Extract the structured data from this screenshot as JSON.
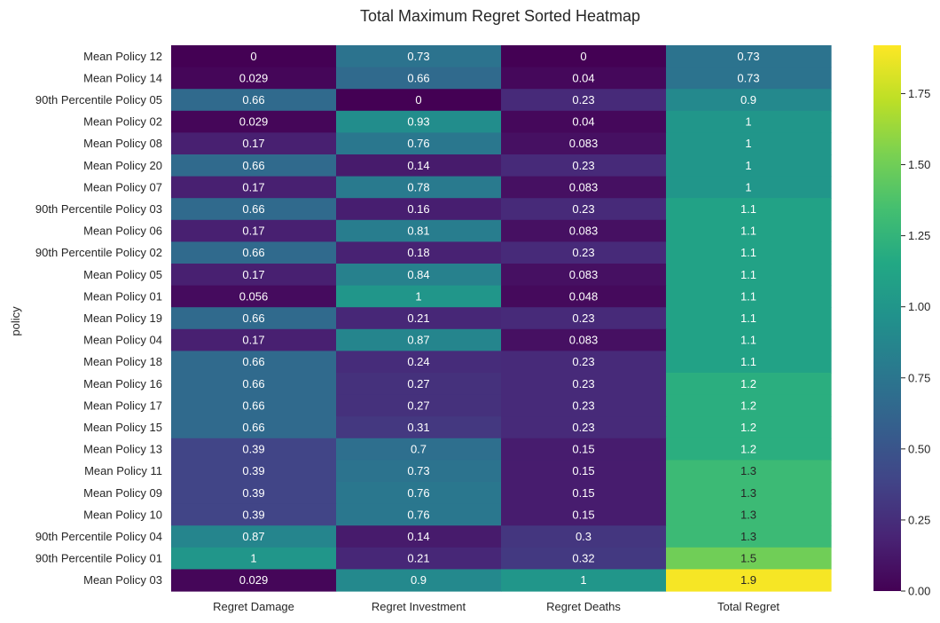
{
  "chart_data": {
    "type": "heatmap",
    "title": "Total Maximum Regret Sorted Heatmap",
    "ylabel": "policy",
    "xlabel": "",
    "colormap": "viridis",
    "columns": [
      "Regret Damage",
      "Regret Investment",
      "Regret Deaths",
      "Total Regret"
    ],
    "rows": [
      "Mean Policy 12",
      "Mean Policy 14",
      "90th Percentile Policy 05",
      "Mean Policy 02",
      "Mean Policy 08",
      "Mean Policy 20",
      "Mean Policy 07",
      "90th Percentile Policy 03",
      "Mean Policy 06",
      "90th Percentile Policy 02",
      "Mean Policy 05",
      "Mean Policy 01",
      "Mean Policy 19",
      "Mean Policy 04",
      "Mean Policy 18",
      "Mean Policy 16",
      "Mean Policy 17",
      "Mean Policy 15",
      "Mean Policy 13",
      "Mean Policy 11",
      "Mean Policy 09",
      "Mean Policy 10",
      "90th Percentile Policy 04",
      "90th Percentile Policy 01",
      "Mean Policy 03"
    ],
    "values": [
      [
        0,
        0.73,
        0,
        0.73
      ],
      [
        0.029,
        0.66,
        0.04,
        0.73
      ],
      [
        0.66,
        0,
        0.23,
        0.9
      ],
      [
        0.029,
        0.93,
        0.04,
        1
      ],
      [
        0.17,
        0.76,
        0.083,
        1
      ],
      [
        0.66,
        0.14,
        0.23,
        1
      ],
      [
        0.17,
        0.78,
        0.083,
        1
      ],
      [
        0.66,
        0.16,
        0.23,
        1.1
      ],
      [
        0.17,
        0.81,
        0.083,
        1.1
      ],
      [
        0.66,
        0.18,
        0.23,
        1.1
      ],
      [
        0.17,
        0.84,
        0.083,
        1.1
      ],
      [
        0.056,
        1,
        0.048,
        1.1
      ],
      [
        0.66,
        0.21,
        0.23,
        1.1
      ],
      [
        0.17,
        0.87,
        0.083,
        1.1
      ],
      [
        0.66,
        0.24,
        0.23,
        1.1
      ],
      [
        0.66,
        0.27,
        0.23,
        1.2
      ],
      [
        0.66,
        0.27,
        0.23,
        1.2
      ],
      [
        0.66,
        0.31,
        0.23,
        1.2
      ],
      [
        0.39,
        0.7,
        0.15,
        1.2
      ],
      [
        0.39,
        0.73,
        0.15,
        1.3
      ],
      [
        0.39,
        0.76,
        0.15,
        1.3
      ],
      [
        0.39,
        0.76,
        0.15,
        1.3
      ],
      [
        0.87,
        0.14,
        0.3,
        1.3
      ],
      [
        1,
        0.21,
        0.32,
        1.5
      ],
      [
        0.029,
        0.9,
        1,
        1.9
      ]
    ],
    "labels": [
      [
        "0",
        "0.73",
        "0",
        "0.73"
      ],
      [
        "0.029",
        "0.66",
        "0.04",
        "0.73"
      ],
      [
        "0.66",
        "0",
        "0.23",
        "0.9"
      ],
      [
        "0.029",
        "0.93",
        "0.04",
        "1"
      ],
      [
        "0.17",
        "0.76",
        "0.083",
        "1"
      ],
      [
        "0.66",
        "0.14",
        "0.23",
        "1"
      ],
      [
        "0.17",
        "0.78",
        "0.083",
        "1"
      ],
      [
        "0.66",
        "0.16",
        "0.23",
        "1.1"
      ],
      [
        "0.17",
        "0.81",
        "0.083",
        "1.1"
      ],
      [
        "0.66",
        "0.18",
        "0.23",
        "1.1"
      ],
      [
        "0.17",
        "0.84",
        "0.083",
        "1.1"
      ],
      [
        "0.056",
        "1",
        "0.048",
        "1.1"
      ],
      [
        "0.66",
        "0.21",
        "0.23",
        "1.1"
      ],
      [
        "0.17",
        "0.87",
        "0.083",
        "1.1"
      ],
      [
        "0.66",
        "0.24",
        "0.23",
        "1.1"
      ],
      [
        "0.66",
        "0.27",
        "0.23",
        "1.2"
      ],
      [
        "0.66",
        "0.27",
        "0.23",
        "1.2"
      ],
      [
        "0.66",
        "0.31",
        "0.23",
        "1.2"
      ],
      [
        "0.39",
        "0.7",
        "0.15",
        "1.2"
      ],
      [
        "0.39",
        "0.73",
        "0.15",
        "1.3"
      ],
      [
        "0.39",
        "0.76",
        "0.15",
        "1.3"
      ],
      [
        "0.39",
        "0.76",
        "0.15",
        "1.3"
      ],
      [
        "0.87",
        "0.14",
        "0.3",
        "1.3"
      ],
      [
        "1",
        "0.21",
        "0.32",
        "1.5"
      ],
      [
        "0.029",
        "0.9",
        "1",
        "1.9"
      ]
    ],
    "color_range": [
      0,
      1.92
    ],
    "colorbar": {
      "ticks": [
        0,
        0.25,
        0.5,
        0.75,
        1.0,
        1.25,
        1.5,
        1.75
      ],
      "tick_labels": [
        "0.00",
        "0.25",
        "0.50",
        "0.75",
        "1.00",
        "1.25",
        "1.50",
        "1.75"
      ]
    },
    "grid": false,
    "legend": "colorbar-right"
  }
}
